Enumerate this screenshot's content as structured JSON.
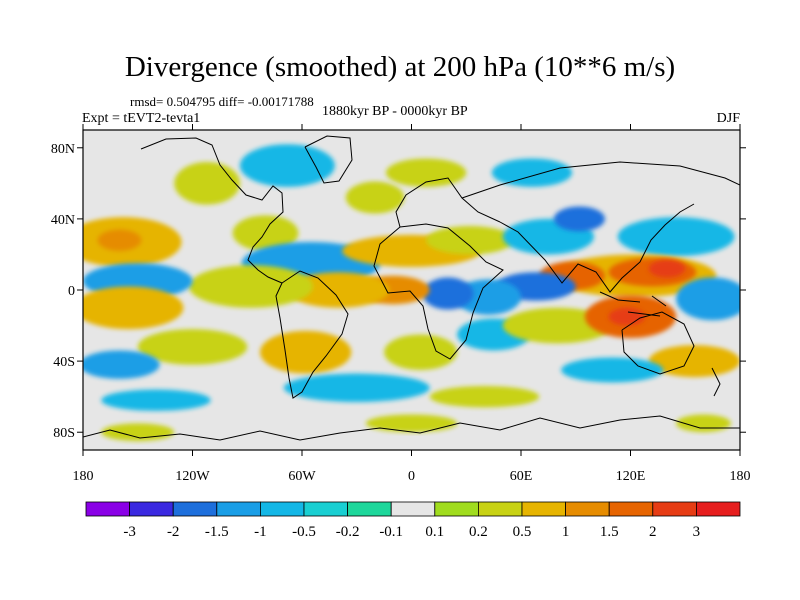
{
  "title": "Divergence (smoothed) at 200 hPa (10**6 m/s)",
  "stats_line": "rmsd= 0.504795  diff= -0.00171788",
  "experiment": "Expt = tEVT2-tevta1",
  "period": "1880kyr BP - 0000kyr BP",
  "season": "DJF",
  "chart_data": {
    "type": "filled-contour-map",
    "title": "Divergence (smoothed) at 200 hPa (10**6 m/s)",
    "units": "10**6 m/s",
    "rmsd": 0.504795,
    "diff": -0.00171788,
    "xlim": [
      -180,
      180
    ],
    "ylim": [
      -90,
      90
    ],
    "x_ticks": [
      {
        "value": -180,
        "label": "180"
      },
      {
        "value": -120,
        "label": "120W"
      },
      {
        "value": -60,
        "label": "60W"
      },
      {
        "value": 0,
        "label": "0"
      },
      {
        "value": 60,
        "label": "60E"
      },
      {
        "value": 120,
        "label": "120E"
      },
      {
        "value": 180,
        "label": "180"
      }
    ],
    "y_ticks": [
      {
        "value": 80,
        "label": "80N"
      },
      {
        "value": 40,
        "label": "40N"
      },
      {
        "value": 0,
        "label": "0"
      },
      {
        "value": -40,
        "label": "40S"
      },
      {
        "value": -80,
        "label": "80S"
      }
    ],
    "colorbar": {
      "colors": [
        "#8a00e6",
        "#3a28e0",
        "#1e6fdc",
        "#1a9ee6",
        "#14b7e6",
        "#19cfd2",
        "#1ed79b",
        "#e6e6e6",
        "#a0dc1e",
        "#c8d214",
        "#e6b400",
        "#e68c00",
        "#e66400",
        "#e63c14",
        "#e61e1e"
      ],
      "labels": [
        "-3",
        "-2",
        "-1.5",
        "-1",
        "-0.5",
        "-0.2",
        "-0.1",
        "0.1",
        "0.2",
        "0.5",
        "1",
        "1.5",
        "2",
        "3"
      ]
    },
    "regions": [
      {
        "lon": -158,
        "lat": 27,
        "rx": 32,
        "ry": 14,
        "level": 10
      },
      {
        "lon": -160,
        "lat": 28,
        "rx": 12,
        "ry": 6,
        "level": 11
      },
      {
        "lon": -112,
        "lat": 60,
        "rx": 18,
        "ry": 12,
        "level": 9
      },
      {
        "lon": -68,
        "lat": 70,
        "rx": 26,
        "ry": 12,
        "level": 4
      },
      {
        "lon": -20,
        "lat": 52,
        "rx": 16,
        "ry": 9,
        "level": 9
      },
      {
        "lon": 8,
        "lat": 66,
        "rx": 22,
        "ry": 8,
        "level": 9
      },
      {
        "lon": 66,
        "lat": 66,
        "rx": 22,
        "ry": 8,
        "level": 4
      },
      {
        "lon": -80,
        "lat": 32,
        "rx": 18,
        "ry": 10,
        "level": 9
      },
      {
        "lon": -55,
        "lat": 15,
        "rx": 38,
        "ry": 12,
        "level": 3
      },
      {
        "lon": 0,
        "lat": 22,
        "rx": 38,
        "ry": 9,
        "level": 10
      },
      {
        "lon": 32,
        "lat": 28,
        "rx": 24,
        "ry": 8,
        "level": 9
      },
      {
        "lon": 75,
        "lat": 30,
        "rx": 25,
        "ry": 10,
        "level": 4
      },
      {
        "lon": 92,
        "lat": 40,
        "rx": 14,
        "ry": 7,
        "level": 2
      },
      {
        "lon": 145,
        "lat": 30,
        "rx": 32,
        "ry": 11,
        "level": 4
      },
      {
        "lon": 122,
        "lat": 8,
        "rx": 45,
        "ry": 12,
        "level": 10
      },
      {
        "lon": 132,
        "lat": 10,
        "rx": 24,
        "ry": 8,
        "level": 12
      },
      {
        "lon": 140,
        "lat": 12,
        "rx": 10,
        "ry": 5,
        "level": 13
      },
      {
        "lon": 88,
        "lat": 8,
        "rx": 18,
        "ry": 8,
        "level": 12
      },
      {
        "lon": 68,
        "lat": 2,
        "rx": 22,
        "ry": 8,
        "level": 2
      },
      {
        "lon": 42,
        "lat": -4,
        "rx": 18,
        "ry": 10,
        "level": 3
      },
      {
        "lon": 20,
        "lat": -2,
        "rx": 14,
        "ry": 9,
        "level": 2
      },
      {
        "lon": -10,
        "lat": 0,
        "rx": 20,
        "ry": 8,
        "level": 11
      },
      {
        "lon": -40,
        "lat": 0,
        "rx": 28,
        "ry": 10,
        "level": 10
      },
      {
        "lon": -88,
        "lat": 2,
        "rx": 34,
        "ry": 12,
        "level": 9
      },
      {
        "lon": -150,
        "lat": 5,
        "rx": 30,
        "ry": 10,
        "level": 3
      },
      {
        "lon": -155,
        "lat": -10,
        "rx": 30,
        "ry": 12,
        "level": 10
      },
      {
        "lon": -120,
        "lat": -32,
        "rx": 30,
        "ry": 10,
        "level": 9
      },
      {
        "lon": -160,
        "lat": -42,
        "rx": 22,
        "ry": 8,
        "level": 3
      },
      {
        "lon": -58,
        "lat": -35,
        "rx": 25,
        "ry": 12,
        "level": 10
      },
      {
        "lon": 5,
        "lat": -35,
        "rx": 20,
        "ry": 10,
        "level": 9
      },
      {
        "lon": 45,
        "lat": -25,
        "rx": 20,
        "ry": 9,
        "level": 4
      },
      {
        "lon": 80,
        "lat": -20,
        "rx": 30,
        "ry": 10,
        "level": 9
      },
      {
        "lon": 120,
        "lat": -15,
        "rx": 25,
        "ry": 12,
        "level": 12
      },
      {
        "lon": 118,
        "lat": -15,
        "rx": 10,
        "ry": 5,
        "level": 13
      },
      {
        "lon": 165,
        "lat": -5,
        "rx": 20,
        "ry": 12,
        "level": 3
      },
      {
        "lon": 155,
        "lat": -40,
        "rx": 25,
        "ry": 9,
        "level": 10
      },
      {
        "lon": 110,
        "lat": -45,
        "rx": 28,
        "ry": 7,
        "level": 4
      },
      {
        "lon": -30,
        "lat": -55,
        "rx": 40,
        "ry": 8,
        "level": 4
      },
      {
        "lon": 40,
        "lat": -60,
        "rx": 30,
        "ry": 6,
        "level": 9
      },
      {
        "lon": -140,
        "lat": -62,
        "rx": 30,
        "ry": 6,
        "level": 4
      },
      {
        "lon": 0,
        "lat": -75,
        "rx": 25,
        "ry": 5,
        "level": 9
      },
      {
        "lon": -150,
        "lat": -80,
        "rx": 20,
        "ry": 5,
        "level": 9
      },
      {
        "lon": 160,
        "lat": -75,
        "rx": 15,
        "ry": 5,
        "level": 9
      }
    ]
  }
}
